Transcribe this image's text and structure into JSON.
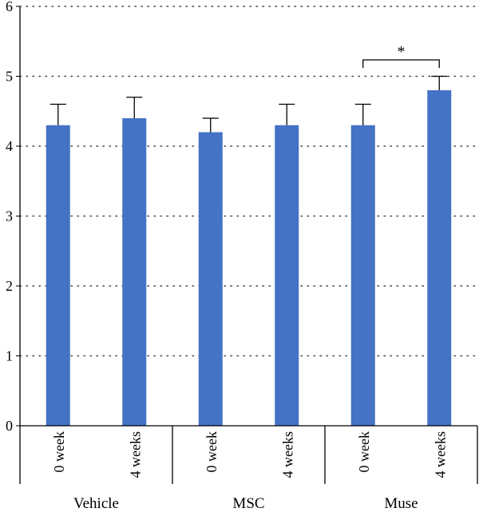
{
  "chart_data": {
    "type": "bar",
    "ylim": [
      0,
      6
    ],
    "yticks": [
      0,
      1,
      2,
      3,
      4,
      5,
      6
    ],
    "grid": "horizontal-dotted",
    "bar_color": "#4472C4",
    "categories": [
      "0 week",
      "4 weeks",
      "0 week",
      "4 weeks",
      "0 week",
      "4 weeks"
    ],
    "groups": [
      {
        "name": "Vehicle",
        "span": [
          0,
          1
        ]
      },
      {
        "name": "MSC",
        "span": [
          2,
          3
        ]
      },
      {
        "name": "Muse",
        "span": [
          4,
          5
        ]
      }
    ],
    "values": [
      4.3,
      4.4,
      4.2,
      4.3,
      4.3,
      4.8
    ],
    "error_upper": [
      0.3,
      0.3,
      0.2,
      0.3,
      0.3,
      0.2
    ],
    "significance": [
      {
        "from": 4,
        "to": 5,
        "label": "*"
      }
    ]
  }
}
